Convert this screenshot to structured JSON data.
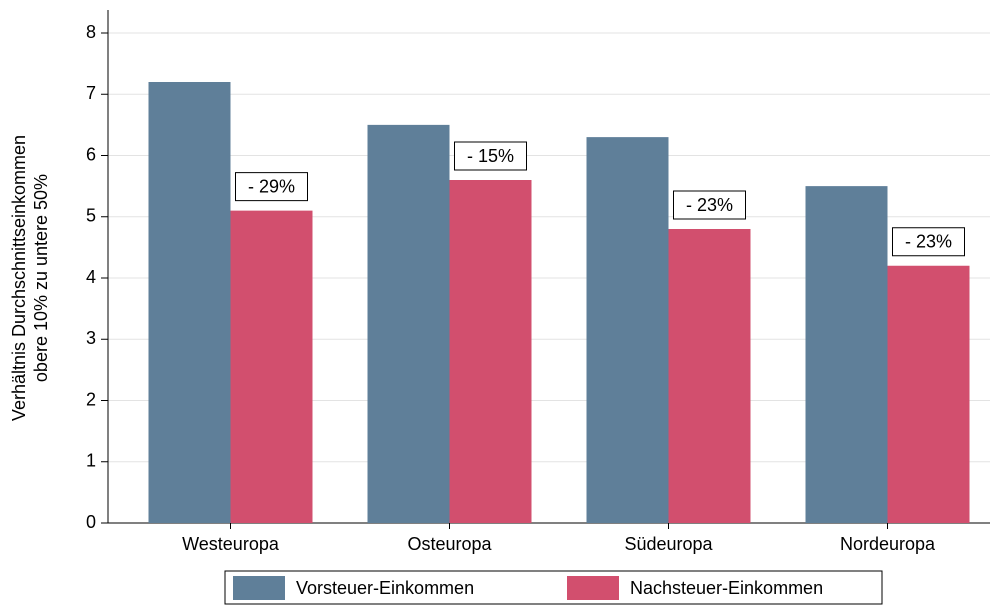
{
  "chart_data": {
    "type": "bar",
    "ylabel": [
      "Verhältnis Durchschnittseinkommen",
      "obere 10% zu untere 50%"
    ],
    "categories": [
      "Westeuropa",
      "Osteuropa",
      "Südeuropa",
      "Nordeuropa"
    ],
    "series": [
      {
        "name": "Vorsteuer-Einkommen",
        "color": "#5f7f99",
        "values": [
          7.2,
          6.5,
          6.3,
          5.5
        ]
      },
      {
        "name": "Nachsteuer-Einkommen",
        "color": "#d24f6e",
        "values": [
          5.1,
          5.6,
          4.8,
          4.2
        ],
        "annotations": [
          "- 29%",
          "- 15%",
          "- 23%",
          "- 23%"
        ]
      }
    ],
    "ylim": [
      0,
      8
    ],
    "yticks": [
      0,
      1,
      2,
      3,
      4,
      5,
      6,
      7,
      8
    ],
    "grid": true,
    "legend": "bottom"
  }
}
